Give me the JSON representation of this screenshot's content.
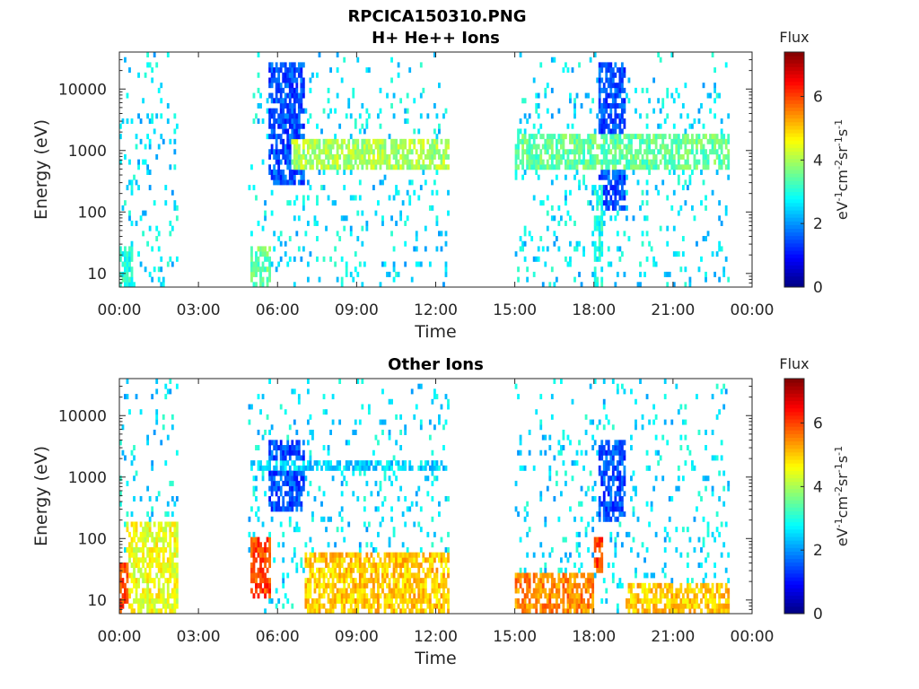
{
  "figure_title": "RPCICA150310.PNG",
  "colorbar": {
    "title": "Flux",
    "label_main": "eV",
    "label_parts": [
      {
        "t": "eV",
        "sup": false
      },
      {
        "t": "-1",
        "sup": true
      },
      {
        "t": "cm",
        "sup": false
      },
      {
        "t": "-2",
        "sup": true
      },
      {
        "t": "sr",
        "sup": false
      },
      {
        "t": "-1",
        "sup": true
      },
      {
        "t": "s",
        "sup": false
      },
      {
        "t": "-1",
        "sup": true
      }
    ],
    "range": [
      0,
      7.4
    ],
    "ticks": [
      "0",
      "2",
      "4",
      "6"
    ],
    "colormap": "jet"
  },
  "chart_data": [
    {
      "type": "heatmap",
      "name": "H+ He++ Ions",
      "title": "H+ He++ Ions",
      "xlabel": "Time",
      "ylabel": "Energy (eV)",
      "xlim_hours": [
        0,
        24
      ],
      "x_tick_labels": [
        "00:00",
        "03:00",
        "06:00",
        "09:00",
        "12:00",
        "15:00",
        "18:00",
        "21:00",
        "00:00"
      ],
      "ylim": [
        6,
        40000
      ],
      "y_scale": "log",
      "y_tick_labels": [
        "10",
        "100",
        "1000",
        "10000"
      ],
      "data_intervals_hours": [
        [
          0.0,
          2.25
        ],
        [
          4.9,
          12.5
        ],
        [
          15.0,
          23.1
        ]
      ],
      "features": [
        {
          "time_hours": [
            0.0,
            0.5
          ],
          "energy_eV": [
            6,
            30
          ],
          "flux": 3.0
        },
        {
          "time_hours": [
            5.0,
            5.7
          ],
          "energy_eV": [
            6,
            30
          ],
          "flux": 3.5
        },
        {
          "time_hours": [
            5.7,
            7.0
          ],
          "energy_eV": [
            300,
            30000
          ],
          "flux": 1.5
        },
        {
          "time_hours": [
            6.5,
            12.5
          ],
          "energy_eV": [
            500,
            1500
          ],
          "flux": 4.0
        },
        {
          "time_hours": [
            15.0,
            23.1
          ],
          "energy_eV": [
            500,
            1800
          ],
          "flux": 3.5
        },
        {
          "time_hours": [
            18.0,
            18.3
          ],
          "energy_eV": [
            6,
            300
          ],
          "flux": 3.0
        },
        {
          "time_hours": [
            18.2,
            19.2
          ],
          "energy_eV": [
            100,
            30000
          ],
          "flux": 1.5
        }
      ]
    },
    {
      "type": "heatmap",
      "name": "Other Ions",
      "title": "Other Ions",
      "xlabel": "Time",
      "ylabel": "Energy (eV)",
      "xlim_hours": [
        0,
        24
      ],
      "x_tick_labels": [
        "00:00",
        "03:00",
        "06:00",
        "09:00",
        "12:00",
        "15:00",
        "18:00",
        "21:00",
        "00:00"
      ],
      "ylim": [
        6,
        40000
      ],
      "y_scale": "log",
      "y_tick_labels": [
        "10",
        "100",
        "1000",
        "10000"
      ],
      "data_intervals_hours": [
        [
          0.0,
          2.25
        ],
        [
          4.9,
          12.5
        ],
        [
          15.0,
          23.1
        ]
      ],
      "features": [
        {
          "time_hours": [
            0.0,
            0.3
          ],
          "energy_eV": [
            6,
            40
          ],
          "flux": 6.0
        },
        {
          "time_hours": [
            0.3,
            2.2
          ],
          "energy_eV": [
            6,
            200
          ],
          "flux": 4.5
        },
        {
          "time_hours": [
            5.0,
            5.7
          ],
          "energy_eV": [
            10,
            100
          ],
          "flux": 6.0
        },
        {
          "time_hours": [
            5.7,
            7.0
          ],
          "energy_eV": [
            300,
            4000
          ],
          "flux": 1.5
        },
        {
          "time_hours": [
            7.0,
            12.5
          ],
          "energy_eV": [
            6,
            60
          ],
          "flux": 5.0
        },
        {
          "time_hours": [
            5.0,
            12.5
          ],
          "energy_eV": [
            1400,
            2000
          ],
          "flux": 2.5
        },
        {
          "time_hours": [
            15.0,
            18.0
          ],
          "energy_eV": [
            6,
            30
          ],
          "flux": 5.5
        },
        {
          "time_hours": [
            18.0,
            18.3
          ],
          "energy_eV": [
            30,
            100
          ],
          "flux": 6.0
        },
        {
          "time_hours": [
            18.2,
            19.2
          ],
          "energy_eV": [
            200,
            4000
          ],
          "flux": 1.5
        },
        {
          "time_hours": [
            19.2,
            23.1
          ],
          "energy_eV": [
            6,
            20
          ],
          "flux": 5.0
        }
      ]
    }
  ]
}
